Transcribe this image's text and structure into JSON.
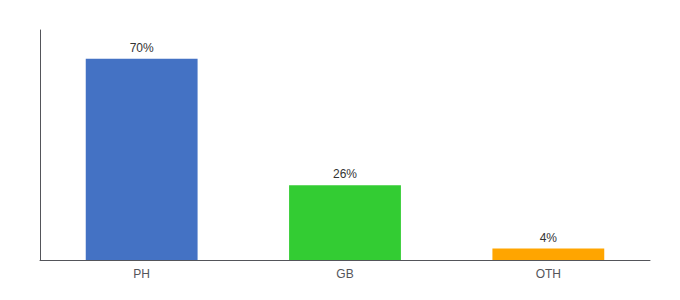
{
  "chart_data": {
    "type": "bar",
    "categories": [
      "PH",
      "GB",
      "OTH"
    ],
    "values": [
      70,
      26,
      4
    ],
    "value_labels": [
      "70%",
      "26%",
      "4%"
    ],
    "data_labels": true,
    "colors": [
      "#4472C4",
      "#33CC33",
      "#FFA500"
    ],
    "ylim": [
      0,
      80
    ],
    "grid": false,
    "tick_labels": "x"
  }
}
